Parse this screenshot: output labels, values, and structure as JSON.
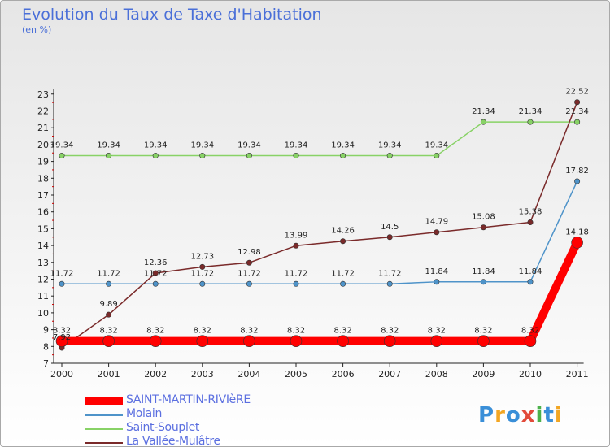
{
  "title": "Evolution du Taux de Taxe d'Habitation",
  "unit_label": "(en %)",
  "brand": "Proxiti",
  "chart_data": {
    "type": "line",
    "categories": [
      "2000",
      "2001",
      "2002",
      "2003",
      "2004",
      "2005",
      "2006",
      "2007",
      "2008",
      "2009",
      "2010",
      "2011"
    ],
    "ylim": [
      7,
      23
    ],
    "yticks": [
      7,
      8,
      9,
      10,
      11,
      12,
      13,
      14,
      15,
      16,
      17,
      18,
      19,
      20,
      21,
      22,
      23
    ],
    "grid": false,
    "legend_position": "bottom-left",
    "series": [
      {
        "name": "SAINT-MARTIN-RIVIèRE",
        "color": "#ff0000",
        "values": [
          8.32,
          8.32,
          8.32,
          8.32,
          8.32,
          8.32,
          8.32,
          8.32,
          8.32,
          8.32,
          8.32,
          14.18
        ],
        "labels": [
          "8.32",
          "8.32",
          "8.32",
          "8.32",
          "8.32",
          "8.32",
          "8.32",
          "8.32",
          "8.32",
          "8.32",
          "8.32",
          "14.18"
        ]
      },
      {
        "name": "Molain",
        "color": "#4e93c9",
        "values": [
          11.72,
          11.72,
          11.72,
          11.72,
          11.72,
          11.72,
          11.72,
          11.72,
          11.84,
          11.84,
          11.84,
          17.82
        ],
        "labels": [
          "11.72",
          "11.72",
          "11.72",
          "11.72",
          "11.72",
          "11.72",
          "11.72",
          "11.72",
          "11.84",
          "11.84",
          "11.84",
          "17.82"
        ]
      },
      {
        "name": "Saint-Souplet",
        "color": "#88d266",
        "values": [
          19.34,
          19.34,
          19.34,
          19.34,
          19.34,
          19.34,
          19.34,
          19.34,
          19.34,
          21.34,
          21.34,
          21.34
        ],
        "labels": [
          "19.34",
          "19.34",
          "19.34",
          "19.34",
          "19.34",
          "19.34",
          "19.34",
          "19.34",
          "19.34",
          "21.34",
          "21.34",
          "21.34"
        ]
      },
      {
        "name": "La Vallée-Mulâtre",
        "color": "#7a2a2a",
        "values": [
          7.92,
          9.89,
          12.36,
          12.73,
          12.98,
          13.99,
          14.26,
          14.5,
          14.79,
          15.08,
          15.38,
          22.52
        ],
        "labels": [
          "7.92",
          "9.89",
          "12.36",
          "12.73",
          "12.98",
          "13.99",
          "14.26",
          "14.5",
          "14.79",
          "15.08",
          "15.38",
          "22.52"
        ]
      }
    ]
  }
}
